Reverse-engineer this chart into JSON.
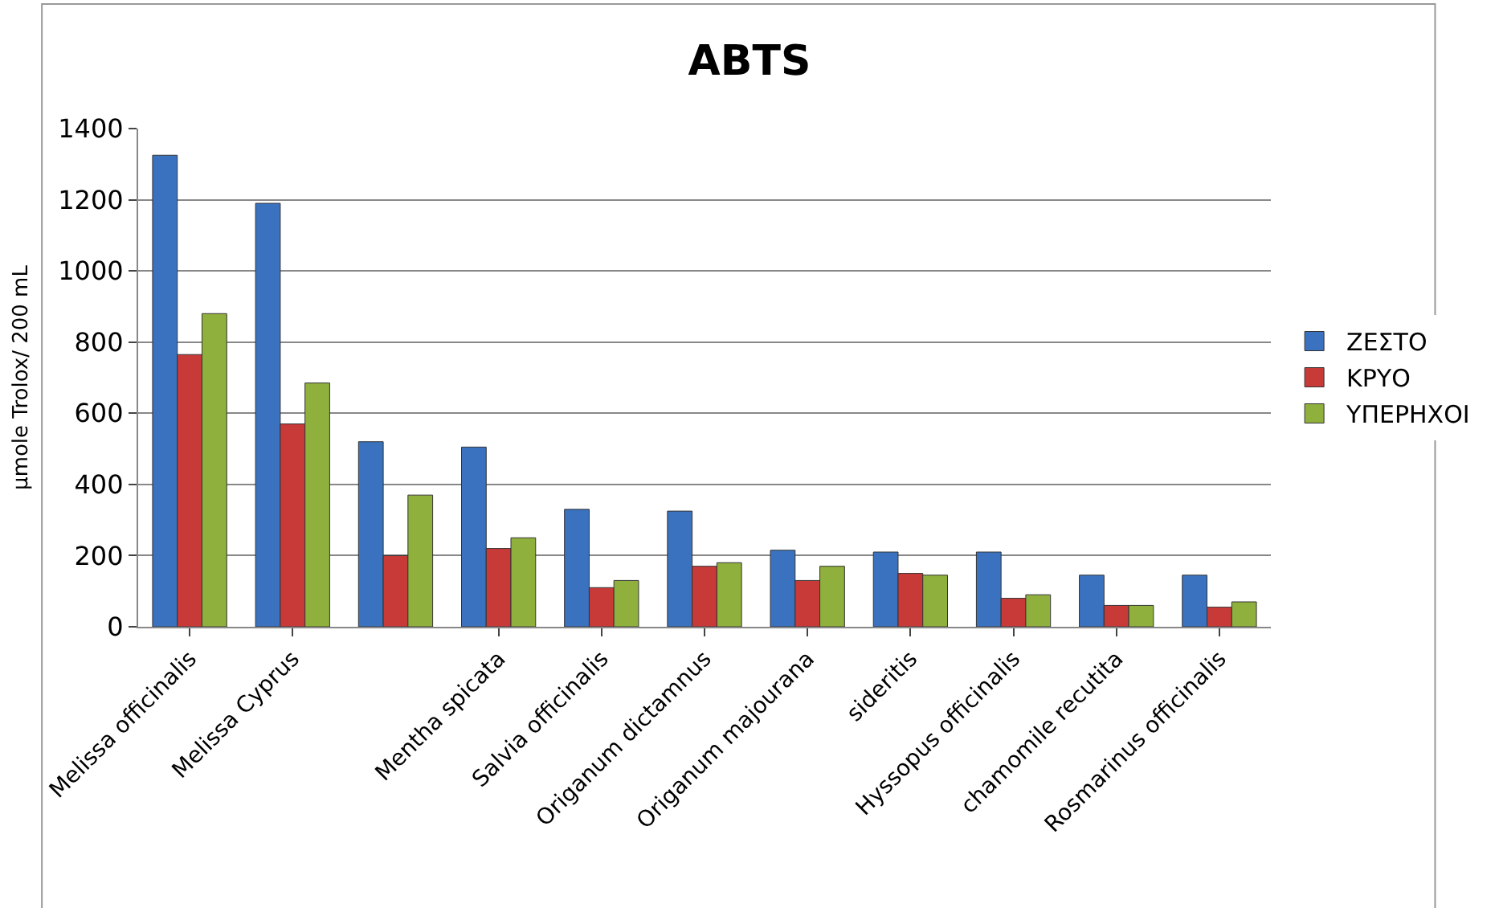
{
  "chart_data": {
    "type": "bar",
    "title": "ABTS",
    "ylabel": "μmole Trolox/ 200 mL",
    "categories": [
      "Melissa officinalis",
      "Melissa Cyprus",
      null,
      "Mentha spicata",
      "Salvia officinalis",
      "Origanum dictamnus",
      "Origanum majourana",
      "sideritis",
      "Hyssopus officinalis",
      "chamomile recutita",
      "Rosmarinus officinalis"
    ],
    "series": [
      {
        "name": "ΖΕΣΤΟ",
        "color": "#3a72c0",
        "values": [
          1325,
          1190,
          520,
          505,
          330,
          325,
          215,
          210,
          210,
          145,
          145
        ]
      },
      {
        "name": "ΚΡΥΟ",
        "color": "#c83a38",
        "values": [
          765,
          570,
          200,
          220,
          110,
          170,
          130,
          150,
          80,
          60,
          55
        ]
      },
      {
        "name": "ΥΠΕΡΗΧΟΙ",
        "color": "#8fb03c",
        "values": [
          880,
          685,
          370,
          250,
          130,
          180,
          170,
          145,
          90,
          60,
          70
        ]
      }
    ],
    "ylim": [
      0,
      1400
    ],
    "yticks": [
      0,
      200,
      400,
      600,
      800,
      1000,
      1200,
      1400
    ],
    "grid": "y",
    "legend": "right"
  }
}
